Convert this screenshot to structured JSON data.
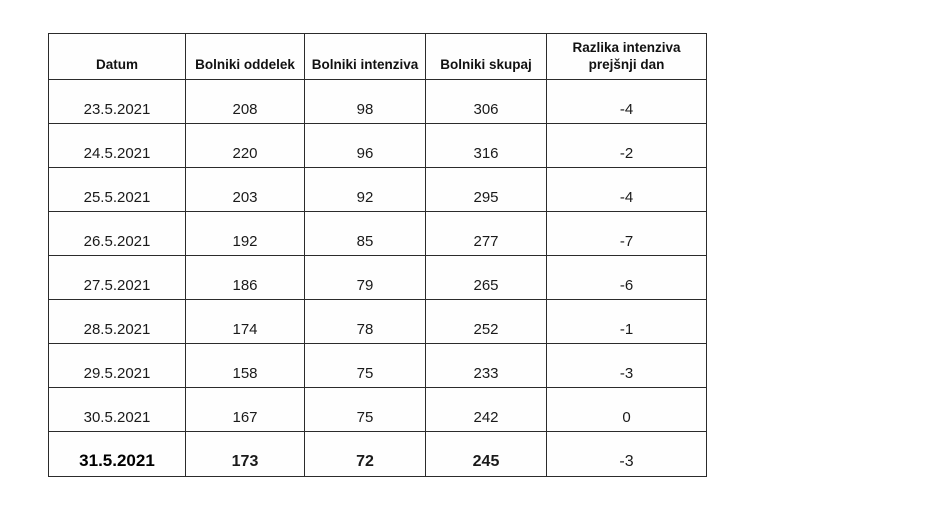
{
  "colors": {
    "oddelek_blue": "#4472c4",
    "intenziva_orange": "#ed7d31",
    "skupaj_green": "#70ad47",
    "text_black": "#1a1a1a",
    "border": "#2b2b2b"
  },
  "table": {
    "columns": [
      "Datum",
      "Bolniki oddelek",
      "Bolniki intenziva",
      "Bolniki skupaj",
      "Razlika intenziva prejšnji dan"
    ],
    "rows": [
      {
        "datum": "23.5.2021",
        "oddelek": "208",
        "intenziva": "98",
        "skupaj": "306",
        "razlika": "-4"
      },
      {
        "datum": "24.5.2021",
        "oddelek": "220",
        "intenziva": "96",
        "skupaj": "316",
        "razlika": "-2"
      },
      {
        "datum": "25.5.2021",
        "oddelek": "203",
        "intenziva": "92",
        "skupaj": "295",
        "razlika": "-4"
      },
      {
        "datum": "26.5.2021",
        "oddelek": "192",
        "intenziva": "85",
        "skupaj": "277",
        "razlika": "-7"
      },
      {
        "datum": "27.5.2021",
        "oddelek": "186",
        "intenziva": "79",
        "skupaj": "265",
        "razlika": "-6"
      },
      {
        "datum": "28.5.2021",
        "oddelek": "174",
        "intenziva": "78",
        "skupaj": "252",
        "razlika": "-1"
      },
      {
        "datum": "29.5.2021",
        "oddelek": "158",
        "intenziva": "75",
        "skupaj": "233",
        "razlika": "-3"
      },
      {
        "datum": "30.5.2021",
        "oddelek": "167",
        "intenziva": "75",
        "skupaj": "242",
        "razlika": "0"
      },
      {
        "datum": "31.5.2021",
        "oddelek": "173",
        "intenziva": "72",
        "skupaj": "245",
        "razlika": "-3"
      }
    ]
  },
  "chart_data": {
    "type": "table",
    "columns": [
      "Datum",
      "Bolniki oddelek",
      "Bolniki intenziva",
      "Bolniki skupaj",
      "Razlika intenziva prejšnji dan"
    ],
    "rows": [
      [
        "23.5.2021",
        208,
        98,
        306,
        -4
      ],
      [
        "24.5.2021",
        220,
        96,
        316,
        -2
      ],
      [
        "25.5.2021",
        203,
        92,
        295,
        -4
      ],
      [
        "26.5.2021",
        192,
        85,
        277,
        -7
      ],
      [
        "27.5.2021",
        186,
        79,
        265,
        -6
      ],
      [
        "28.5.2021",
        174,
        78,
        252,
        -1
      ],
      [
        "29.5.2021",
        158,
        75,
        233,
        -3
      ],
      [
        "30.5.2021",
        167,
        75,
        242,
        0
      ],
      [
        "31.5.2021",
        173,
        72,
        245,
        -3
      ]
    ],
    "notes": "Last row (31.5.2021) rendered bold; column value colors: oddelek=#4472c4, intenziva=#ed7d31, skupaj=#70ad47"
  }
}
